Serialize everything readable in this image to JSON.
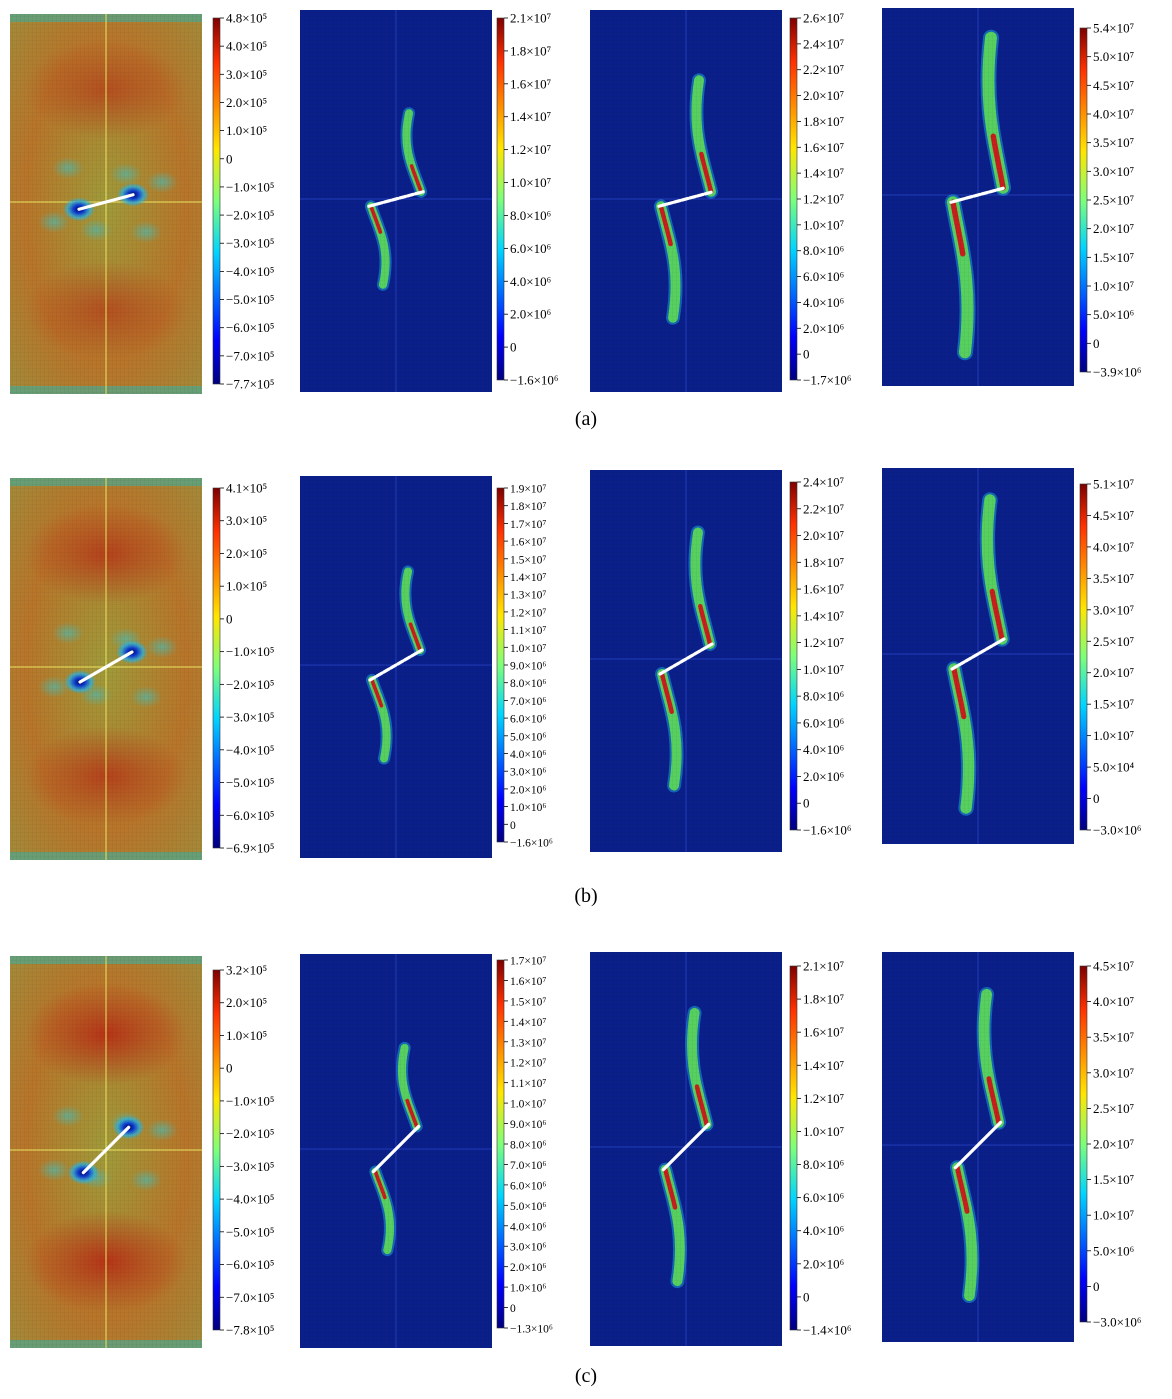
{
  "panels": [
    {
      "label": "(a)",
      "plots": [
        {
          "field": "stress",
          "crack_angle_deg": 15,
          "colorbar": [
            "4.8×10⁵",
            "4.0×10⁵",
            "3.0×10⁵",
            "2.0×10⁵",
            "1.0×10⁵",
            "0",
            "−1.0×10⁵",
            "−2.0×10⁵",
            "−3.0×10⁵",
            "−4.0×10⁵",
            "−5.0×10⁵",
            "−6.0×10⁵",
            "−7.0×10⁵",
            "−7.7×10⁵"
          ]
        },
        {
          "field": "damage",
          "crack_angle_deg": 15,
          "growth": 0.35,
          "colorbar": [
            "2.1×10⁷",
            "1.8×10⁷",
            "1.6×10⁷",
            "1.4×10⁷",
            "1.2×10⁷",
            "1.0×10⁷",
            "8.0×10⁶",
            "6.0×10⁶",
            "4.0×10⁶",
            "2.0×10⁶",
            "0",
            "−1.6×10⁶"
          ]
        },
        {
          "field": "damage",
          "crack_angle_deg": 15,
          "growth": 0.65,
          "colorbar": [
            "2.6×10⁷",
            "2.4×10⁷",
            "2.2×10⁷",
            "2.0×10⁷",
            "1.8×10⁷",
            "1.6×10⁷",
            "1.4×10⁷",
            "1.2×10⁷",
            "1.0×10⁷",
            "8.0×10⁶",
            "6.0×10⁶",
            "4.0×10⁶",
            "2.0×10⁶",
            "0",
            "−1.7×10⁶"
          ]
        },
        {
          "field": "damage",
          "crack_angle_deg": 15,
          "growth": 1.0,
          "colorbar": [
            "5.4×10⁷",
            "5.0×10⁷",
            "4.5×10⁷",
            "4.0×10⁷",
            "3.5×10⁷",
            "3.0×10⁷",
            "2.5×10⁷",
            "2.0×10⁷",
            "1.5×10⁷",
            "1.0×10⁷",
            "5.0×10⁶",
            "0",
            "−3.9×10⁶"
          ]
        }
      ]
    },
    {
      "label": "(b)",
      "plots": [
        {
          "field": "stress",
          "crack_angle_deg": 30,
          "colorbar": [
            "4.1×10⁵",
            "3.0×10⁵",
            "2.0×10⁵",
            "1.0×10⁵",
            "0",
            "−1.0×10⁵",
            "−2.0×10⁵",
            "−3.0×10⁵",
            "−4.0×10⁵",
            "−5.0×10⁵",
            "−6.0×10⁵",
            "−6.9×10⁵"
          ]
        },
        {
          "field": "damage",
          "crack_angle_deg": 30,
          "growth": 0.35,
          "colorbar": [
            "1.9×10⁷",
            "1.8×10⁷",
            "1.7×10⁷",
            "1.6×10⁷",
            "1.5×10⁷",
            "1.4×10⁷",
            "1.3×10⁷",
            "1.2×10⁷",
            "1.1×10⁷",
            "1.0×10⁷",
            "9.0×10⁶",
            "8.0×10⁶",
            "7.0×10⁶",
            "6.0×10⁶",
            "5.0×10⁶",
            "4.0×10⁶",
            "3.0×10⁶",
            "2.0×10⁶",
            "1.0×10⁶",
            "0",
            "−1.6×10⁶"
          ]
        },
        {
          "field": "damage",
          "crack_angle_deg": 30,
          "growth": 0.65,
          "colorbar": [
            "2.4×10⁷",
            "2.2×10⁷",
            "2.0×10⁷",
            "1.8×10⁷",
            "1.6×10⁷",
            "1.4×10⁷",
            "1.2×10⁷",
            "1.0×10⁷",
            "8.0×10⁶",
            "6.0×10⁶",
            "4.0×10⁶",
            "2.0×10⁶",
            "0",
            "−1.6×10⁶"
          ]
        },
        {
          "field": "damage",
          "crack_angle_deg": 30,
          "growth": 0.9,
          "colorbar": [
            "5.1×10⁷",
            "4.5×10⁷",
            "4.0×10⁷",
            "3.5×10⁷",
            "3.0×10⁷",
            "2.5×10⁷",
            "2.0×10⁷",
            "1.5×10⁷",
            "1.0×10⁷",
            "5.0×10⁴",
            "0",
            "−3.0×10⁶"
          ]
        }
      ]
    },
    {
      "label": "(c)",
      "plots": [
        {
          "field": "stress",
          "crack_angle_deg": 45,
          "colorbar": [
            "3.2×10⁵",
            "2.0×10⁵",
            "1.0×10⁵",
            "0",
            "−1.0×10⁵",
            "−2.0×10⁵",
            "−3.0×10⁵",
            "−4.0×10⁵",
            "−5.0×10⁵",
            "−6.0×10⁵",
            "−7.0×10⁵",
            "−7.8×10⁵"
          ]
        },
        {
          "field": "damage",
          "crack_angle_deg": 45,
          "growth": 0.35,
          "colorbar": [
            "1.7×10⁷",
            "1.6×10⁷",
            "1.5×10⁷",
            "1.4×10⁷",
            "1.3×10⁷",
            "1.2×10⁷",
            "1.1×10⁷",
            "1.0×10⁷",
            "9.0×10⁶",
            "8.0×10⁶",
            "7.0×10⁶",
            "6.0×10⁶",
            "5.0×10⁶",
            "4.0×10⁶",
            "3.0×10⁶",
            "2.0×10⁶",
            "1.0×10⁶",
            "0",
            "−1.3×10⁶"
          ]
        },
        {
          "field": "damage",
          "crack_angle_deg": 45,
          "growth": 0.65,
          "colorbar": [
            "2.1×10⁷",
            "1.8×10⁷",
            "1.6×10⁷",
            "1.4×10⁷",
            "1.2×10⁷",
            "1.0×10⁷",
            "8.0×10⁶",
            "6.0×10⁶",
            "4.0×10⁶",
            "2.0×10⁶",
            "0",
            "−1.4×10⁶"
          ]
        },
        {
          "field": "damage",
          "crack_angle_deg": 45,
          "growth": 0.8,
          "colorbar": [
            "4.5×10⁷",
            "4.0×10⁷",
            "3.5×10⁷",
            "3.0×10⁷",
            "2.5×10⁷",
            "2.0×10⁷",
            "1.5×10⁷",
            "1.0×10⁷",
            "5.0×10⁶",
            "0",
            "−3.0×10⁶"
          ]
        }
      ]
    }
  ],
  "colors": {
    "stress_background": "#b8752a",
    "damage_background": "#0b1f8a",
    "crack": "#ffffff",
    "damage_band": "#c81e1e"
  }
}
